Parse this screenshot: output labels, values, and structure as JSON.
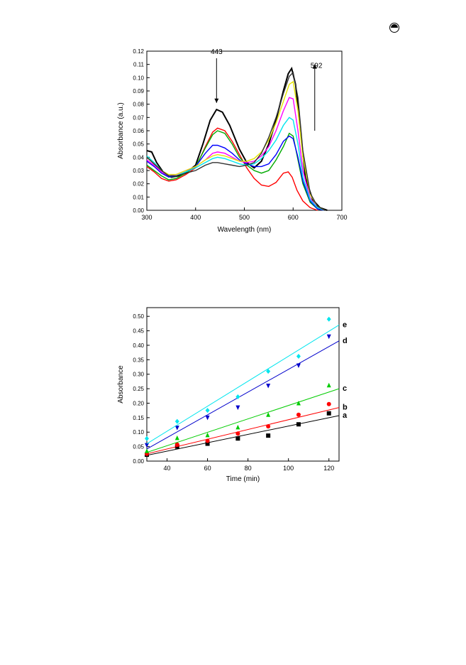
{
  "page": {
    "icon": "circle-half-icon"
  },
  "chart_data": [
    {
      "type": "line",
      "xlabel": "Wavelength (nm)",
      "ylabel": "Absorbance (a.u.)",
      "xlim": [
        300,
        700
      ],
      "ylim": [
        0,
        0.12
      ],
      "xticks": [
        "300",
        "400",
        "500",
        "600",
        "700"
      ],
      "yticks": [
        "0.00",
        "0.01",
        "0.02",
        "0.03",
        "0.04",
        "0.05",
        "0.06",
        "0.07",
        "0.08",
        "0.09",
        "0.10",
        "0.11",
        "0.12"
      ],
      "grid": false,
      "annotations": [
        {
          "text": "443",
          "direction": "down",
          "x": 443
        },
        {
          "text": "592",
          "direction": "up",
          "x": 592
        }
      ],
      "series": [
        {
          "color": "#000000",
          "points": [
            [
              300,
              0.045
            ],
            [
              310,
              0.044
            ],
            [
              320,
              0.036
            ],
            [
              335,
              0.028
            ],
            [
              350,
              0.025
            ],
            [
              365,
              0.026
            ],
            [
              380,
              0.028
            ],
            [
              400,
              0.034
            ],
            [
              415,
              0.05
            ],
            [
              430,
              0.068
            ],
            [
              443,
              0.076
            ],
            [
              455,
              0.074
            ],
            [
              470,
              0.064
            ],
            [
              490,
              0.046
            ],
            [
              505,
              0.036
            ],
            [
              520,
              0.032
            ],
            [
              535,
              0.037
            ],
            [
              550,
              0.05
            ],
            [
              565,
              0.068
            ],
            [
              580,
              0.09
            ],
            [
              590,
              0.103
            ],
            [
              597,
              0.107
            ],
            [
              605,
              0.095
            ],
            [
              615,
              0.06
            ],
            [
              625,
              0.025
            ],
            [
              640,
              0.008
            ],
            [
              655,
              0.002
            ],
            [
              670,
              0.0
            ]
          ]
        },
        {
          "color": "#ff0000",
          "points": [
            [
              300,
              0.033
            ],
            [
              315,
              0.029
            ],
            [
              330,
              0.024
            ],
            [
              345,
              0.022
            ],
            [
              360,
              0.023
            ],
            [
              380,
              0.027
            ],
            [
              400,
              0.032
            ],
            [
              420,
              0.048
            ],
            [
              435,
              0.059
            ],
            [
              445,
              0.062
            ],
            [
              460,
              0.06
            ],
            [
              475,
              0.052
            ],
            [
              490,
              0.042
            ],
            [
              505,
              0.032
            ],
            [
              520,
              0.024
            ],
            [
              535,
              0.019
            ],
            [
              550,
              0.018
            ],
            [
              565,
              0.021
            ],
            [
              580,
              0.028
            ],
            [
              590,
              0.029
            ],
            [
              598,
              0.025
            ],
            [
              608,
              0.015
            ],
            [
              620,
              0.007
            ],
            [
              635,
              0.002
            ],
            [
              650,
              0.0
            ]
          ]
        },
        {
          "color": "#00aa00",
          "points": [
            [
              300,
              0.034
            ],
            [
              315,
              0.03
            ],
            [
              330,
              0.026
            ],
            [
              345,
              0.023
            ],
            [
              360,
              0.024
            ],
            [
              380,
              0.028
            ],
            [
              400,
              0.033
            ],
            [
              420,
              0.047
            ],
            [
              435,
              0.057
            ],
            [
              445,
              0.06
            ],
            [
              460,
              0.058
            ],
            [
              475,
              0.05
            ],
            [
              490,
              0.04
            ],
            [
              505,
              0.034
            ],
            [
              520,
              0.03
            ],
            [
              535,
              0.028
            ],
            [
              550,
              0.03
            ],
            [
              565,
              0.038
            ],
            [
              580,
              0.048
            ],
            [
              592,
              0.058
            ],
            [
              600,
              0.056
            ],
            [
              610,
              0.038
            ],
            [
              620,
              0.02
            ],
            [
              635,
              0.006
            ],
            [
              650,
              0.001
            ],
            [
              665,
              0.0
            ]
          ]
        },
        {
          "color": "#0000ff",
          "points": [
            [
              300,
              0.037
            ],
            [
              315,
              0.033
            ],
            [
              330,
              0.028
            ],
            [
              345,
              0.025
            ],
            [
              360,
              0.026
            ],
            [
              380,
              0.029
            ],
            [
              400,
              0.033
            ],
            [
              420,
              0.043
            ],
            [
              435,
              0.049
            ],
            [
              445,
              0.049
            ],
            [
              460,
              0.047
            ],
            [
              475,
              0.043
            ],
            [
              490,
              0.038
            ],
            [
              505,
              0.035
            ],
            [
              520,
              0.033
            ],
            [
              535,
              0.033
            ],
            [
              550,
              0.035
            ],
            [
              565,
              0.042
            ],
            [
              580,
              0.052
            ],
            [
              592,
              0.056
            ],
            [
              600,
              0.054
            ],
            [
              610,
              0.04
            ],
            [
              620,
              0.022
            ],
            [
              635,
              0.007
            ],
            [
              650,
              0.001
            ],
            [
              665,
              0.0
            ]
          ]
        },
        {
          "color": "#ff00ff",
          "points": [
            [
              300,
              0.038
            ],
            [
              315,
              0.034
            ],
            [
              330,
              0.029
            ],
            [
              345,
              0.026
            ],
            [
              360,
              0.027
            ],
            [
              380,
              0.03
            ],
            [
              400,
              0.033
            ],
            [
              420,
              0.038
            ],
            [
              435,
              0.043
            ],
            [
              445,
              0.044
            ],
            [
              460,
              0.043
            ],
            [
              475,
              0.04
            ],
            [
              490,
              0.037
            ],
            [
              505,
              0.036
            ],
            [
              520,
              0.037
            ],
            [
              535,
              0.041
            ],
            [
              550,
              0.048
            ],
            [
              565,
              0.06
            ],
            [
              580,
              0.075
            ],
            [
              592,
              0.085
            ],
            [
              600,
              0.084
            ],
            [
              610,
              0.06
            ],
            [
              620,
              0.03
            ],
            [
              635,
              0.009
            ],
            [
              650,
              0.002
            ],
            [
              665,
              0.0
            ]
          ]
        },
        {
          "color": "#00e5ee",
          "points": [
            [
              300,
              0.041
            ],
            [
              315,
              0.036
            ],
            [
              330,
              0.03
            ],
            [
              345,
              0.026
            ],
            [
              360,
              0.026
            ],
            [
              380,
              0.029
            ],
            [
              400,
              0.032
            ],
            [
              420,
              0.036
            ],
            [
              435,
              0.039
            ],
            [
              445,
              0.04
            ],
            [
              460,
              0.039
            ],
            [
              475,
              0.037
            ],
            [
              490,
              0.035
            ],
            [
              505,
              0.034
            ],
            [
              520,
              0.035
            ],
            [
              535,
              0.039
            ],
            [
              550,
              0.045
            ],
            [
              565,
              0.053
            ],
            [
              580,
              0.064
            ],
            [
              592,
              0.07
            ],
            [
              600,
              0.068
            ],
            [
              610,
              0.05
            ],
            [
              620,
              0.025
            ],
            [
              635,
              0.008
            ],
            [
              650,
              0.002
            ],
            [
              665,
              0.0
            ]
          ]
        },
        {
          "color": "#e6e600",
          "points": [
            [
              300,
              0.04
            ],
            [
              315,
              0.035
            ],
            [
              330,
              0.03
            ],
            [
              345,
              0.027
            ],
            [
              360,
              0.027
            ],
            [
              380,
              0.03
            ],
            [
              400,
              0.033
            ],
            [
              420,
              0.038
            ],
            [
              435,
              0.041
            ],
            [
              445,
              0.042
            ],
            [
              460,
              0.041
            ],
            [
              475,
              0.039
            ],
            [
              490,
              0.037
            ],
            [
              505,
              0.037
            ],
            [
              520,
              0.039
            ],
            [
              535,
              0.044
            ],
            [
              550,
              0.053
            ],
            [
              565,
              0.066
            ],
            [
              580,
              0.082
            ],
            [
              592,
              0.095
            ],
            [
              600,
              0.097
            ],
            [
              610,
              0.075
            ],
            [
              620,
              0.04
            ],
            [
              635,
              0.012
            ],
            [
              650,
              0.003
            ],
            [
              665,
              0.0
            ]
          ]
        },
        {
          "color": "#333333",
          "points": [
            [
              300,
              0.04
            ],
            [
              315,
              0.035
            ],
            [
              330,
              0.03
            ],
            [
              345,
              0.026
            ],
            [
              360,
              0.026
            ],
            [
              380,
              0.028
            ],
            [
              400,
              0.03
            ],
            [
              420,
              0.034
            ],
            [
              435,
              0.036
            ],
            [
              445,
              0.036
            ],
            [
              460,
              0.035
            ],
            [
              475,
              0.034
            ],
            [
              490,
              0.033
            ],
            [
              505,
              0.034
            ],
            [
              520,
              0.036
            ],
            [
              535,
              0.043
            ],
            [
              550,
              0.055
            ],
            [
              565,
              0.07
            ],
            [
              580,
              0.088
            ],
            [
              592,
              0.101
            ],
            [
              600,
              0.104
            ],
            [
              610,
              0.085
            ],
            [
              620,
              0.045
            ],
            [
              635,
              0.013
            ],
            [
              650,
              0.003
            ],
            [
              665,
              0.0
            ]
          ]
        }
      ]
    },
    {
      "type": "scatter",
      "xlabel": "Time (min)",
      "ylabel": "Absorbance",
      "xlim": [
        30,
        125
      ],
      "ylim": [
        0,
        0.53
      ],
      "xticks": [
        "40",
        "60",
        "80",
        "100",
        "120"
      ],
      "yticks": [
        "0.00",
        "0.05",
        "0.10",
        "0.15",
        "0.20",
        "0.25",
        "0.30",
        "0.35",
        "0.40",
        "0.45",
        "0.50"
      ],
      "grid": false,
      "x": [
        30,
        45,
        60,
        75,
        90,
        105,
        120
      ],
      "series": [
        {
          "name": "a",
          "color": "#000000",
          "marker": "square",
          "values": [
            0.022,
            0.05,
            0.06,
            0.078,
            0.088,
            0.127,
            0.165
          ],
          "fit": [
            [
              30,
              0.02
            ],
            [
              125,
              0.157
            ]
          ]
        },
        {
          "name": "b",
          "color": "#ff0000",
          "marker": "circle",
          "values": [
            0.025,
            0.057,
            0.07,
            0.095,
            0.12,
            0.16,
            0.197
          ],
          "fit": [
            [
              30,
              0.025
            ],
            [
              125,
              0.185
            ]
          ]
        },
        {
          "name": "c",
          "color": "#00cc00",
          "marker": "triangle-up",
          "values": [
            0.035,
            0.08,
            0.09,
            0.117,
            0.16,
            0.2,
            0.262
          ],
          "fit": [
            [
              30,
              0.03
            ],
            [
              125,
              0.25
            ]
          ]
        },
        {
          "name": "d",
          "color": "#0000cc",
          "marker": "triangle-down",
          "values": [
            0.055,
            0.115,
            0.15,
            0.185,
            0.26,
            0.33,
            0.43
          ],
          "fit": [
            [
              30,
              0.042
            ],
            [
              125,
              0.415
            ]
          ]
        },
        {
          "name": "e",
          "color": "#00e5ee",
          "marker": "diamond",
          "values": [
            0.078,
            0.137,
            0.175,
            0.222,
            0.31,
            0.362,
            0.49
          ],
          "fit": [
            [
              30,
              0.06
            ],
            [
              125,
              0.47
            ]
          ]
        }
      ]
    }
  ]
}
